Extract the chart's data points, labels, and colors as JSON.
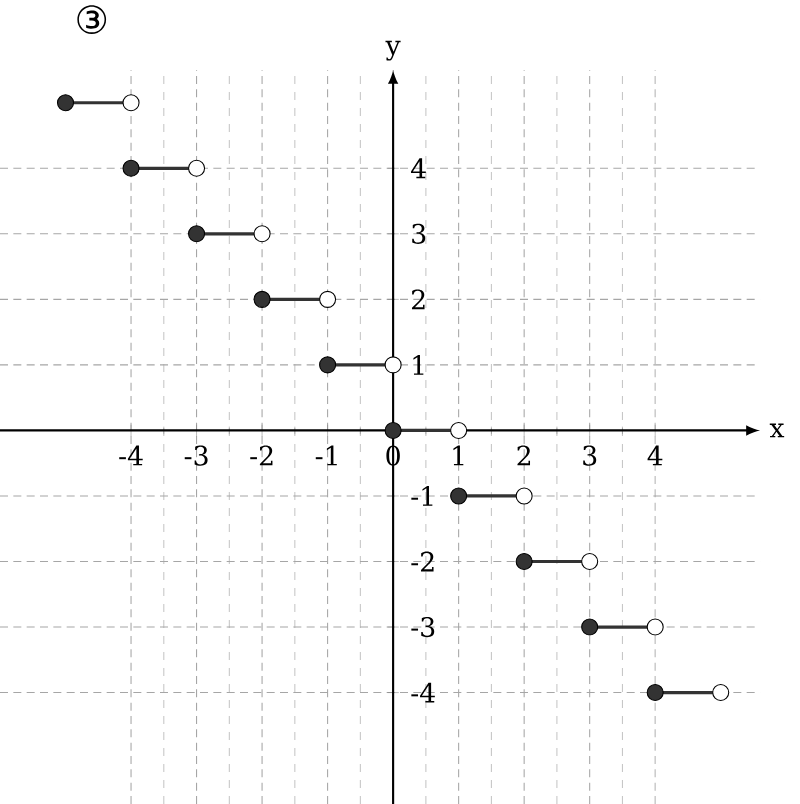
{
  "chart_data": {
    "type": "line",
    "title": "③",
    "xlabel": "x",
    "ylabel": "y",
    "xlim": [
      -6,
      5.6
    ],
    "ylim": [
      -5.7,
      5.5
    ],
    "xticks": [
      -4,
      -3,
      -2,
      -1,
      0,
      1,
      2,
      3,
      4
    ],
    "yticks": [
      -4,
      -3,
      -2,
      -1,
      1,
      2,
      3,
      4
    ],
    "grid": true,
    "line_style": "solid",
    "series": [
      {
        "color": "#333333",
        "x": [
          -5,
          -4
        ],
        "values": [
          5,
          5
        ]
      },
      {
        "color": "#333333",
        "x": [
          -4,
          -3
        ],
        "values": [
          4,
          4
        ]
      },
      {
        "color": "#333333",
        "x": [
          -3,
          -2
        ],
        "values": [
          3,
          3
        ]
      },
      {
        "color": "#333333",
        "x": [
          -2,
          -1
        ],
        "values": [
          2,
          2
        ]
      },
      {
        "color": "#333333",
        "x": [
          -1,
          0
        ],
        "values": [
          1,
          1
        ]
      },
      {
        "color": "#333333",
        "x": [
          0,
          1
        ],
        "values": [
          0,
          0
        ]
      },
      {
        "color": "#333333",
        "x": [
          1,
          2
        ],
        "values": [
          -1,
          -1
        ]
      },
      {
        "color": "#333333",
        "x": [
          2,
          3
        ],
        "values": [
          -2,
          -2
        ]
      },
      {
        "color": "#333333",
        "x": [
          3,
          4
        ],
        "values": [
          -3,
          -3
        ]
      },
      {
        "color": "#333333",
        "x": [
          4,
          5
        ],
        "values": [
          -4,
          -4
        ]
      },
      {
        "type": "scatter",
        "color": "#333333",
        "x": [
          -5,
          -4,
          -3,
          -2,
          -1,
          0,
          1,
          2,
          3,
          4
        ],
        "values": [
          5,
          4,
          3,
          2,
          1,
          0,
          -1,
          -2,
          -3,
          -4
        ]
      },
      {
        "type": "scatter",
        "color": "#ffffff",
        "x": [
          -4,
          -3,
          -2,
          -1,
          0,
          1,
          2,
          3,
          4,
          5
        ],
        "values": [
          5,
          4,
          3,
          2,
          1,
          0,
          -1,
          -2,
          -3,
          -4
        ]
      }
    ]
  }
}
